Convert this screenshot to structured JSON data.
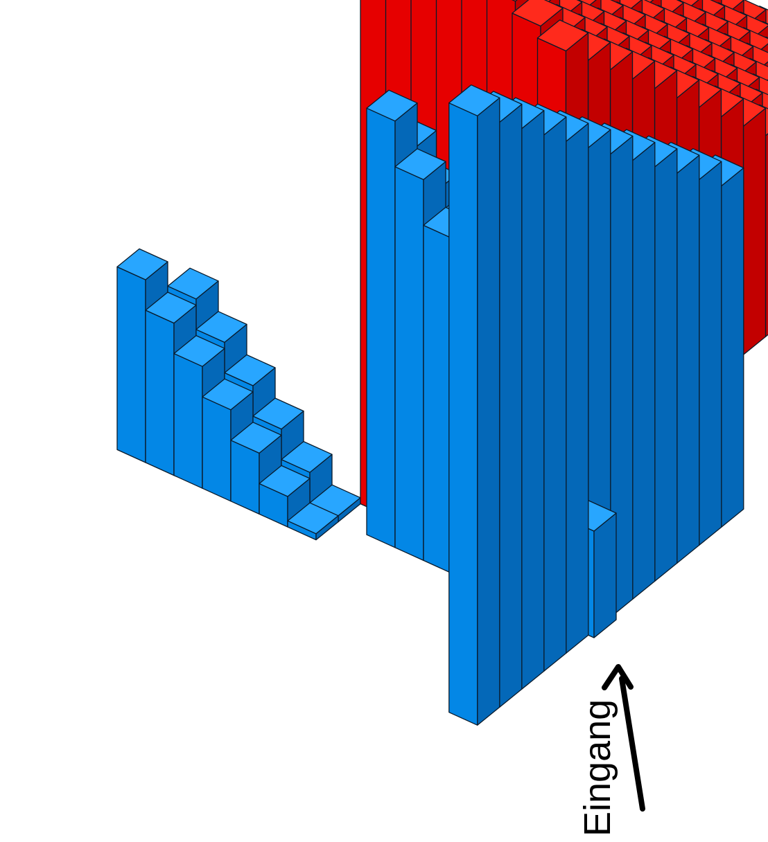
{
  "diagram": {
    "title": "",
    "type": "isometric-3d-bar-landscape",
    "palette": {
      "blue_top": "#28a6ff",
      "blue_left": "#0387e6",
      "blue_right": "#0468b8",
      "red_top": "#ff2a1c",
      "red_left": "#e60000",
      "red_right": "#c20000",
      "outline": "#0a1a2a"
    },
    "entrance": {
      "label": "Eingang",
      "arrow": "up-arrow"
    },
    "wall_ramps": [
      {
        "id": "left-short-wall",
        "color": "blue"
      },
      {
        "id": "tall-red-wall",
        "color": "red"
      },
      {
        "id": "front-blue-wall",
        "color": "blue"
      },
      {
        "id": "right-blue-wall",
        "color": "blue"
      }
    ]
  }
}
